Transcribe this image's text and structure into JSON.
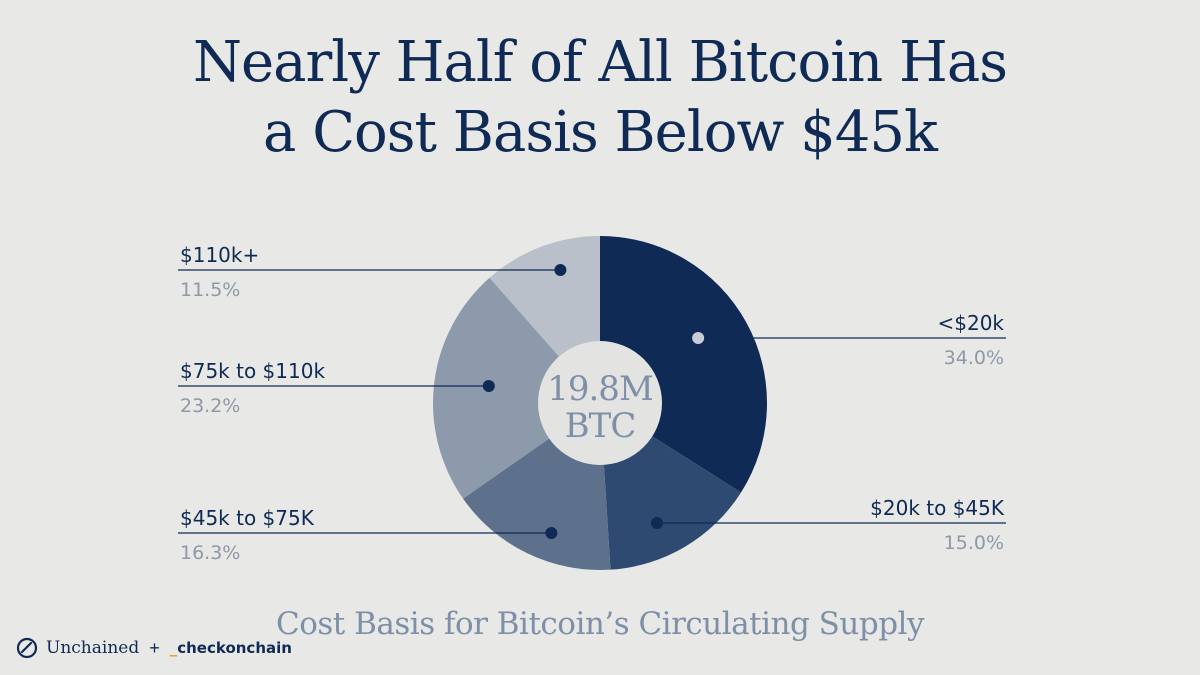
{
  "title": {
    "line1": "Nearly Half of All Bitcoin Has",
    "line2": "a Cost Basis Below $45k"
  },
  "subtitle": "Cost Basis for Bitcoin’s Circulating Supply",
  "center_label": {
    "line1": "19.8M",
    "line2": "BTC"
  },
  "chart_data": {
    "type": "pie",
    "variant": "donut",
    "title": "Nearly Half of All Bitcoin Has a Cost Basis Below $45k",
    "subtitle": "Cost Basis for Bitcoin’s Circulating Supply",
    "slices": [
      {
        "label": "<$20k",
        "value": 34.0,
        "display": "34.0%",
        "color": "#0f2a55",
        "dot": "#c8cdd5",
        "side": "right"
      },
      {
        "label": "$20k to $45K",
        "value": 15.0,
        "display": "15.0%",
        "color": "#2f4a71",
        "dot": "#0f2a55",
        "side": "right"
      },
      {
        "label": "$45k to $75K",
        "value": 16.3,
        "display": "16.3%",
        "color": "#5d718c",
        "dot": "#0f2a55",
        "side": "left"
      },
      {
        "label": "$75k to $110k",
        "value": 23.2,
        "display": "23.2%",
        "color": "#8d9aab",
        "dot": "#0f2a55",
        "side": "left"
      },
      {
        "label": "$110k+",
        "value": 11.5,
        "display": "11.5%",
        "color": "#b9c0ca",
        "dot": "#0f2a55",
        "side": "left"
      }
    ]
  },
  "colors": {
    "navy": "#0f2a55",
    "background": "#e8e8e6",
    "percent_text": "#8e99a8",
    "center_fill": "#e3e3e1",
    "center_text": "#7e90a8"
  },
  "logos": {
    "left": "Unchained",
    "plus": "+",
    "underscore": "_",
    "right": "checkonchain"
  }
}
